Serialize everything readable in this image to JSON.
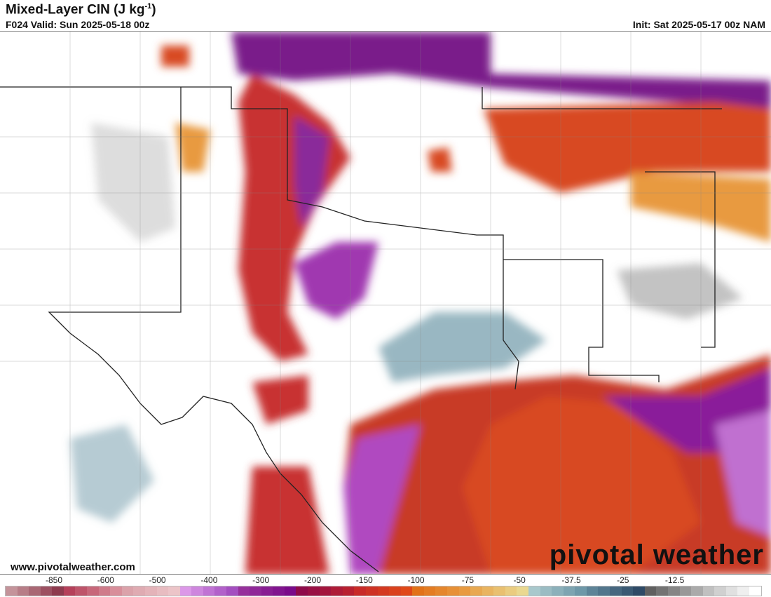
{
  "header": {
    "title": "Mixed-Layer CIN (J kg",
    "title_sup": "-1",
    "title_close": ")",
    "valid": "F024 Valid: Sun 2025-05-18 00z",
    "init": "Init: Sat 2025-05-17 00z NAM"
  },
  "footer": {
    "website": "www.pivotalweather.com",
    "logo": "pivotal weather"
  },
  "colorbar": {
    "tick_labels": [
      "-850",
      "-600",
      "-500",
      "-400",
      "-300",
      "-200",
      "-150",
      "-100",
      "-75",
      "-50",
      "-37.5",
      "-25",
      "-12.5"
    ],
    "segments": [
      {
        "from": "#c4939a",
        "to": "#8e3a4e"
      },
      {
        "from": "#b5405a",
        "to": "#d88e9a"
      },
      {
        "from": "#dba2aa",
        "to": "#ecc4c8"
      },
      {
        "from": "#dc98e8",
        "to": "#a44ec0"
      },
      {
        "from": "#96309c",
        "to": "#7a0a8a"
      },
      {
        "from": "#8e0a4a",
        "to": "#b82030"
      },
      {
        "from": "#c82a28",
        "to": "#e04818"
      },
      {
        "from": "#e27218",
        "to": "#e89a40"
      },
      {
        "from": "#e8a850",
        "to": "#ead890"
      },
      {
        "from": "#a8c8cc",
        "to": "#6e98a8"
      },
      {
        "from": "#5e8498",
        "to": "#2e4a66"
      },
      {
        "from": "#606060",
        "to": "#aaaaaa"
      },
      {
        "from": "#c0c0c0",
        "to": "#ffffff"
      }
    ]
  }
}
